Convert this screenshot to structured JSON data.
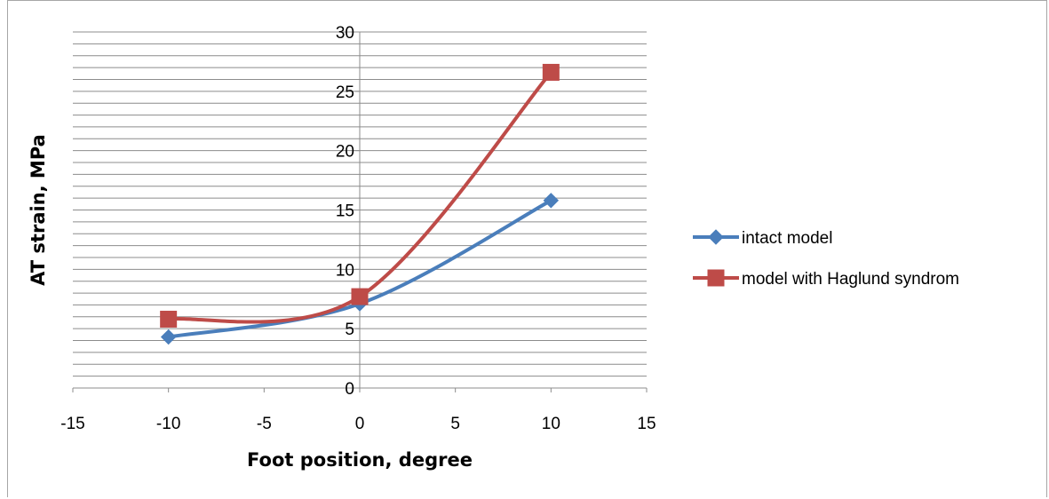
{
  "chart_data": {
    "type": "line",
    "title": "",
    "xlabel": "Foot position, degree",
    "ylabel": "AT strain, MPa",
    "xlim": [
      -15,
      15
    ],
    "ylim": [
      0,
      30
    ],
    "x_ticks": [
      "-15",
      "-10",
      "-5",
      "0",
      "5",
      "10",
      "15"
    ],
    "y_ticks": [
      "0",
      "5",
      "10",
      "15",
      "20",
      "25",
      "30"
    ],
    "grid": true,
    "smooth": true,
    "legend_position": "right",
    "series": [
      {
        "name": "intact model",
        "color": "#4a7ebb",
        "marker": "diamond",
        "x": [
          -10,
          0,
          10
        ],
        "values": [
          4.3,
          7.1,
          15.8
        ]
      },
      {
        "name": "model with Haglund syndrom",
        "color": "#be4b48",
        "marker": "square",
        "x": [
          -10,
          0,
          10
        ],
        "values": [
          5.8,
          7.7,
          26.6
        ]
      }
    ]
  }
}
